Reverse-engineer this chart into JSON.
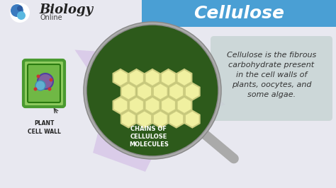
{
  "bg_color": "#e8e8f0",
  "header_color": "#4a9fd4",
  "header_text": "Cellulose",
  "header_text_color": "#ffffff",
  "biology_text": "Biology",
  "online_text": "Online",
  "star_color": "#d8c8e8",
  "magnifier_circle_color": "#2d5a1b",
  "magnifier_border_color": "#888888",
  "magnifier_handle_color": "#aaaaaa",
  "hexagon_color": "#f0f0a0",
  "hexagon_border": "#cccc80",
  "label_chains": "CHAINS OF\nCELLULOSE\nMOLECULES",
  "label_chains_color": "#ffffff",
  "plant_label": "PLANT\nCELL WALL",
  "definition_text": "Cellulose is the fibrous\ncarbohydrate present\nin the cell walls of\nplants, oocytes, and\nsome algae.",
  "definition_bg": "#c8d4d4",
  "definition_text_color": "#333333",
  "cell_border_color": "#4a9a30",
  "cell_bg_color": "#90cc60"
}
